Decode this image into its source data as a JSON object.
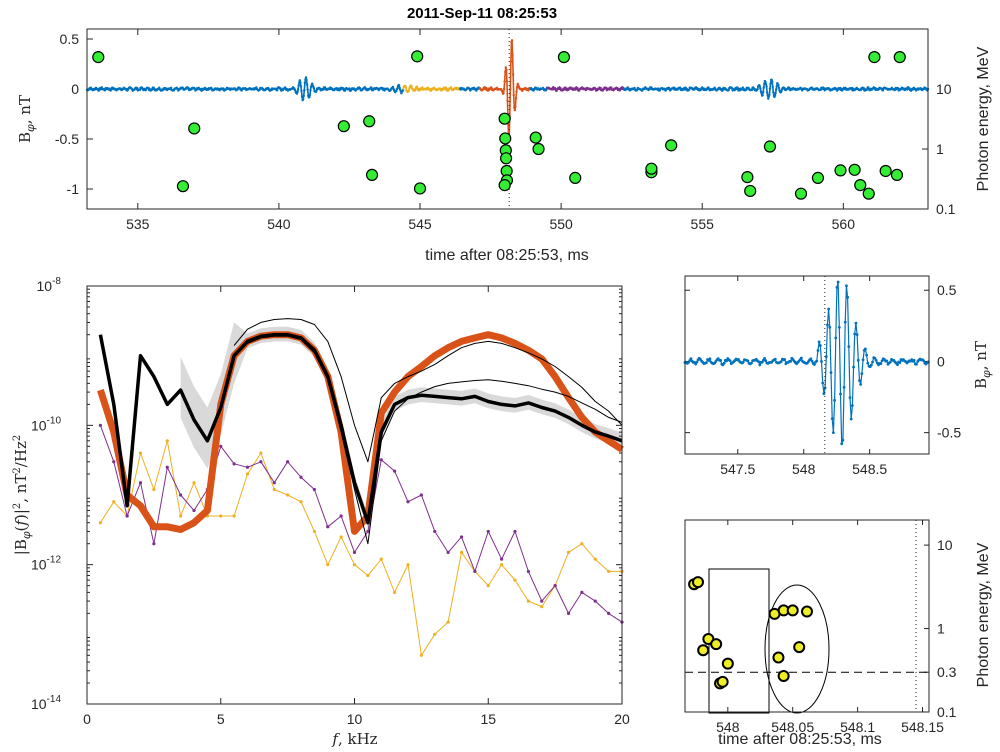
{
  "title": "2011-Sep-11 08:25:53",
  "colors": {
    "blue": "#0072BD",
    "orange": "#D95319",
    "yellow": "#EDB120",
    "purple": "#7E2F8E",
    "photon_green": "#33ee33",
    "photon_yellow": "#eeee22",
    "band_gray": "#d9d9d9",
    "black": "#000000"
  },
  "chart_data": [
    {
      "id": "top",
      "type": "line+scatter",
      "title": "2011-Sep-11 08:25:53",
      "xlabel": "time after 08:25:53, ms",
      "ylabel_left": "B_φ, nT",
      "ylabel_right": "Photon energy, MeV",
      "xlim": [
        533.2,
        563
      ],
      "ylim_left": [
        -1.2,
        0.6
      ],
      "ylim_right_log": [
        0.1,
        100
      ],
      "xticks": [
        "535",
        "540",
        "545",
        "550",
        "555",
        "560"
      ],
      "yticks_left": [
        "0.5",
        "0",
        "-0.5",
        "-1"
      ],
      "yticks_right": [
        "10",
        "1",
        "0.1"
      ],
      "trigger_line_x": 548.16,
      "series": [
        {
          "color": "blue",
          "x_range": [
            533.2,
            563
          ],
          "description_segments": "baseline waveform"
        },
        {
          "color": "yellow",
          "x_range": [
            544.4,
            546.4
          ]
        },
        {
          "color": "orange",
          "x_range": [
            547.1,
            548.9
          ]
        },
        {
          "color": "purple",
          "x_range": [
            549.5,
            552.2
          ]
        }
      ],
      "photons": [
        {
          "t": 533.6,
          "E": 34
        },
        {
          "t": 536.6,
          "E": 0.24
        },
        {
          "t": 537.0,
          "E": 2.2
        },
        {
          "t": 542.3,
          "E": 2.4
        },
        {
          "t": 543.2,
          "E": 2.9
        },
        {
          "t": 543.3,
          "E": 0.37
        },
        {
          "t": 544.9,
          "E": 35
        },
        {
          "t": 545.0,
          "E": 0.22
        },
        {
          "t": 548.0,
          "E": 3.2
        },
        {
          "t": 548.02,
          "E": 1.5
        },
        {
          "t": 548.04,
          "E": 0.95
        },
        {
          "t": 548.05,
          "E": 0.7
        },
        {
          "t": 548.07,
          "E": 0.43
        },
        {
          "t": 548.08,
          "E": 0.3
        },
        {
          "t": 548.0,
          "E": 0.25
        },
        {
          "t": 549.1,
          "E": 1.55
        },
        {
          "t": 549.2,
          "E": 1.0
        },
        {
          "t": 550.1,
          "E": 34
        },
        {
          "t": 550.5,
          "E": 0.33
        },
        {
          "t": 553.2,
          "E": 0.41
        },
        {
          "t": 553.2,
          "E": 0.47
        },
        {
          "t": 553.9,
          "E": 1.15
        },
        {
          "t": 556.6,
          "E": 0.34
        },
        {
          "t": 556.7,
          "E": 0.2
        },
        {
          "t": 557.4,
          "E": 1.1
        },
        {
          "t": 558.5,
          "E": 0.18
        },
        {
          "t": 559.1,
          "E": 0.33
        },
        {
          "t": 559.9,
          "E": 0.44
        },
        {
          "t": 560.4,
          "E": 0.45
        },
        {
          "t": 560.6,
          "E": 0.25
        },
        {
          "t": 560.9,
          "E": 0.18
        },
        {
          "t": 561.1,
          "E": 34
        },
        {
          "t": 561.5,
          "E": 0.43
        },
        {
          "t": 561.9,
          "E": 0.37
        },
        {
          "t": 562.0,
          "E": 34
        }
      ]
    },
    {
      "id": "spectrum",
      "type": "line",
      "xlabel": "f, kHz",
      "ylabel": "|B_φ(f)|², nT²/Hz²",
      "xlim": [
        0,
        20
      ],
      "ylim_log": [
        1e-14,
        1e-08
      ],
      "xticks": [
        "0",
        "5",
        "10",
        "15",
        "20"
      ],
      "yticks": [
        "10-8",
        "10-10",
        "10-12",
        "10-14"
      ],
      "x": [
        0.5,
        1,
        1.5,
        2,
        2.5,
        3,
        3.5,
        4,
        4.5,
        5,
        5.5,
        6,
        6.5,
        7,
        7.5,
        8,
        8.5,
        9,
        9.5,
        10,
        10.5,
        11,
        11.5,
        12,
        12.5,
        13,
        13.5,
        14,
        14.5,
        15,
        15.5,
        16,
        16.5,
        17,
        17.5,
        18,
        18.5,
        19,
        19.5,
        20
      ],
      "series": [
        {
          "color": "orange",
          "style": "thick",
          "values": [
            3.2e-10,
            8e-11,
            1e-11,
            7e-12,
            3.5e-12,
            3.5e-12,
            3.2e-12,
            4e-12,
            6e-12,
            2e-10,
            1e-09,
            1.6e-09,
            1.9e-09,
            2e-09,
            2e-09,
            1.8e-09,
            1.2e-09,
            5e-10,
            8e-11,
            3e-12,
            5e-12,
            1.5e-10,
            3e-10,
            5e-10,
            7e-10,
            1e-09,
            1.3e-09,
            1.6e-09,
            1.8e-09,
            2e-09,
            1.8e-09,
            1.5e-09,
            1.2e-09,
            9e-10,
            5e-10,
            2.5e-10,
            1.3e-10,
            8e-11,
            6e-11,
            4.5e-11
          ]
        },
        {
          "color": "black",
          "style": "thick",
          "values": [
            2e-09,
            2e-10,
            7e-12,
            1e-09,
            5e-10,
            2e-10,
            3.2e-10,
            1.2e-10,
            6e-11,
            1.8e-10,
            1e-09,
            1.6e-09,
            1.9e-09,
            2e-09,
            2e-09,
            1.8e-09,
            1.2e-09,
            5e-10,
            1e-10,
            1.5e-11,
            4e-12,
            8e-11,
            2e-10,
            2.5e-10,
            2.7e-10,
            2.6e-10,
            2.5e-10,
            2.4e-10,
            2.6e-10,
            2.2e-10,
            2e-10,
            1.9e-10,
            2.1e-10,
            1.8e-10,
            1.6e-10,
            1.3e-10,
            1e-10,
            8e-11,
            7e-11,
            6e-11
          ]
        },
        {
          "color": "black",
          "style": "thin-upper",
          "values": [
            null,
            null,
            null,
            null,
            null,
            null,
            null,
            null,
            null,
            null,
            1.4e-09,
            2.4e-09,
            3e-09,
            3.3e-09,
            3.4e-09,
            3.3e-09,
            2.8e-09,
            1.6e-09,
            5e-10,
            1e-10,
            3e-11,
            2.5e-10,
            4e-10,
            5e-10,
            6e-10,
            7.5e-10,
            1e-09,
            1.3e-09,
            1.5e-09,
            1.6e-09,
            1.5e-09,
            1.3e-09,
            1.1e-09,
            9e-10,
            7e-10,
            5e-10,
            3.5e-10,
            2.2e-10,
            1.6e-10,
            1e-10
          ]
        },
        {
          "color": "black",
          "style": "thin-lower",
          "values": [
            null,
            null,
            null,
            null,
            null,
            null,
            null,
            null,
            null,
            null,
            1e-09,
            1.5e-09,
            1.8e-09,
            1.9e-09,
            1.9e-09,
            1.7e-09,
            1.1e-09,
            4.5e-10,
            8e-11,
            1.2e-11,
            2e-12,
            6e-11,
            1.6e-10,
            2.4e-10,
            3e-10,
            3.6e-10,
            4e-10,
            4.2e-10,
            4.4e-10,
            4.5e-10,
            4.3e-10,
            4e-10,
            3.7e-10,
            3.3e-10,
            3e-10,
            2.6e-10,
            2.1e-10,
            1.7e-10,
            1.3e-10,
            1.1e-10
          ]
        },
        {
          "color": "purple",
          "style": "thin-dots",
          "values": [
            1e-10,
            3e-11,
            5e-12,
            1.5e-11,
            2e-12,
            2.5e-11,
            1e-11,
            6e-12,
            1.2e-11,
            5e-11,
            2.8e-11,
            2.5e-11,
            3e-11,
            1.5e-11,
            3e-11,
            1.8e-11,
            1.2e-11,
            3.5e-12,
            5e-12,
            1.5e-12,
            3e-12,
            3.2e-11,
            2.2e-11,
            8e-12,
            1e-11,
            3e-12,
            1.5e-12,
            2.5e-12,
            8e-13,
            3e-12,
            1.2e-12,
            3e-12,
            8e-13,
            3e-13,
            5e-13,
            2e-13,
            4e-13,
            3e-13,
            2e-13,
            1.5e-13
          ]
        },
        {
          "color": "yellow",
          "style": "thin-dots",
          "values": [
            4e-12,
            8e-12,
            5e-12,
            4e-11,
            1.2e-11,
            6e-11,
            5e-12,
            1.5e-11,
            5e-12,
            5e-12,
            5e-12,
            2e-11,
            4e-11,
            1.2e-11,
            1e-11,
            8e-12,
            3e-12,
            1e-12,
            2.5e-12,
            1e-12,
            7e-13,
            1.2e-12,
            4e-13,
            1e-12,
            5e-14,
            1e-13,
            1.5e-13,
            1.5e-12,
            8e-13,
            5e-13,
            1e-12,
            6e-13,
            3e-13,
            2.5e-13,
            5e-13,
            1.5e-12,
            2e-12,
            1.2e-12,
            8e-13,
            8e-13
          ]
        }
      ],
      "band": {
        "x_range": [
          3.5,
          20
        ],
        "color": "band_gray"
      }
    },
    {
      "id": "zoom",
      "type": "line",
      "xlim": [
        547.1,
        548.95
      ],
      "ylim": [
        -0.65,
        0.6
      ],
      "xticks": [
        "547.5",
        "548",
        "548.5"
      ],
      "yticks_right": [
        "0.5",
        "0",
        "-0.5"
      ],
      "ylabel_right": "B_φ, nT",
      "trigger_line_x": 548.16
    },
    {
      "id": "photon_zoom",
      "type": "scatter",
      "xlabel": "time after 08:25:53, ms",
      "ylabel_right": "Photon energy, MeV",
      "xlim": [
        547.967,
        548.155
      ],
      "ylim_log": [
        0.1,
        20
      ],
      "xticks": [
        "548",
        "548.05",
        "548.1",
        "548.15"
      ],
      "yticks_right": [
        "10",
        "1",
        "0.3",
        "0.1"
      ],
      "dashed_level": 0.3,
      "dotted_time": 548.145,
      "photons": [
        {
          "t": 547.974,
          "E": 3.4
        },
        {
          "t": 547.977,
          "E": 3.6
        },
        {
          "t": 547.981,
          "E": 0.55
        },
        {
          "t": 547.985,
          "E": 0.75
        },
        {
          "t": 547.991,
          "E": 0.65
        },
        {
          "t": 547.994,
          "E": 0.22
        },
        {
          "t": 547.996,
          "E": 0.23
        },
        {
          "t": 548.0,
          "E": 0.38
        },
        {
          "t": 548.036,
          "E": 1.5
        },
        {
          "t": 548.043,
          "E": 1.65
        },
        {
          "t": 548.05,
          "E": 1.65
        },
        {
          "t": 548.039,
          "E": 0.45
        },
        {
          "t": 548.043,
          "E": 0.27
        },
        {
          "t": 548.055,
          "E": 0.6
        },
        {
          "t": 548.061,
          "E": 1.6
        }
      ],
      "rect_range": [
        547.97,
        548.015,
        0.15,
        5
      ],
      "ellipse_center": [
        548.048,
        0.7
      ]
    }
  ]
}
